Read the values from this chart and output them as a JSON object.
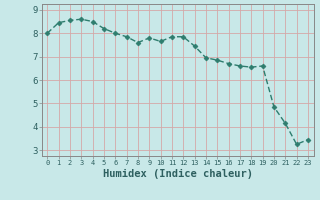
{
  "x": [
    0,
    1,
    2,
    3,
    4,
    5,
    6,
    7,
    8,
    9,
    10,
    11,
    12,
    13,
    14,
    15,
    16,
    17,
    18,
    19,
    20,
    21,
    22,
    23
  ],
  "y": [
    8.0,
    8.45,
    8.55,
    8.6,
    8.5,
    8.2,
    8.0,
    7.85,
    7.6,
    7.8,
    7.65,
    7.85,
    7.85,
    7.45,
    6.95,
    6.85,
    6.7,
    6.6,
    6.55,
    6.6,
    4.85,
    4.15,
    3.25,
    3.45
  ],
  "line_color": "#2e7d6e",
  "marker": "D",
  "marker_size": 2.5,
  "bg_color": "#c8e8e8",
  "grid_color": "#d4a8a8",
  "xlabel": "Humidex (Indice chaleur)",
  "xlabel_fontsize": 7.5,
  "xlim": [
    -0.5,
    23.5
  ],
  "ylim": [
    2.75,
    9.25
  ],
  "yticks": [
    3,
    4,
    5,
    6,
    7,
    8,
    9
  ],
  "xticks": [
    0,
    1,
    2,
    3,
    4,
    5,
    6,
    7,
    8,
    9,
    10,
    11,
    12,
    13,
    14,
    15,
    16,
    17,
    18,
    19,
    20,
    21,
    22,
    23
  ]
}
